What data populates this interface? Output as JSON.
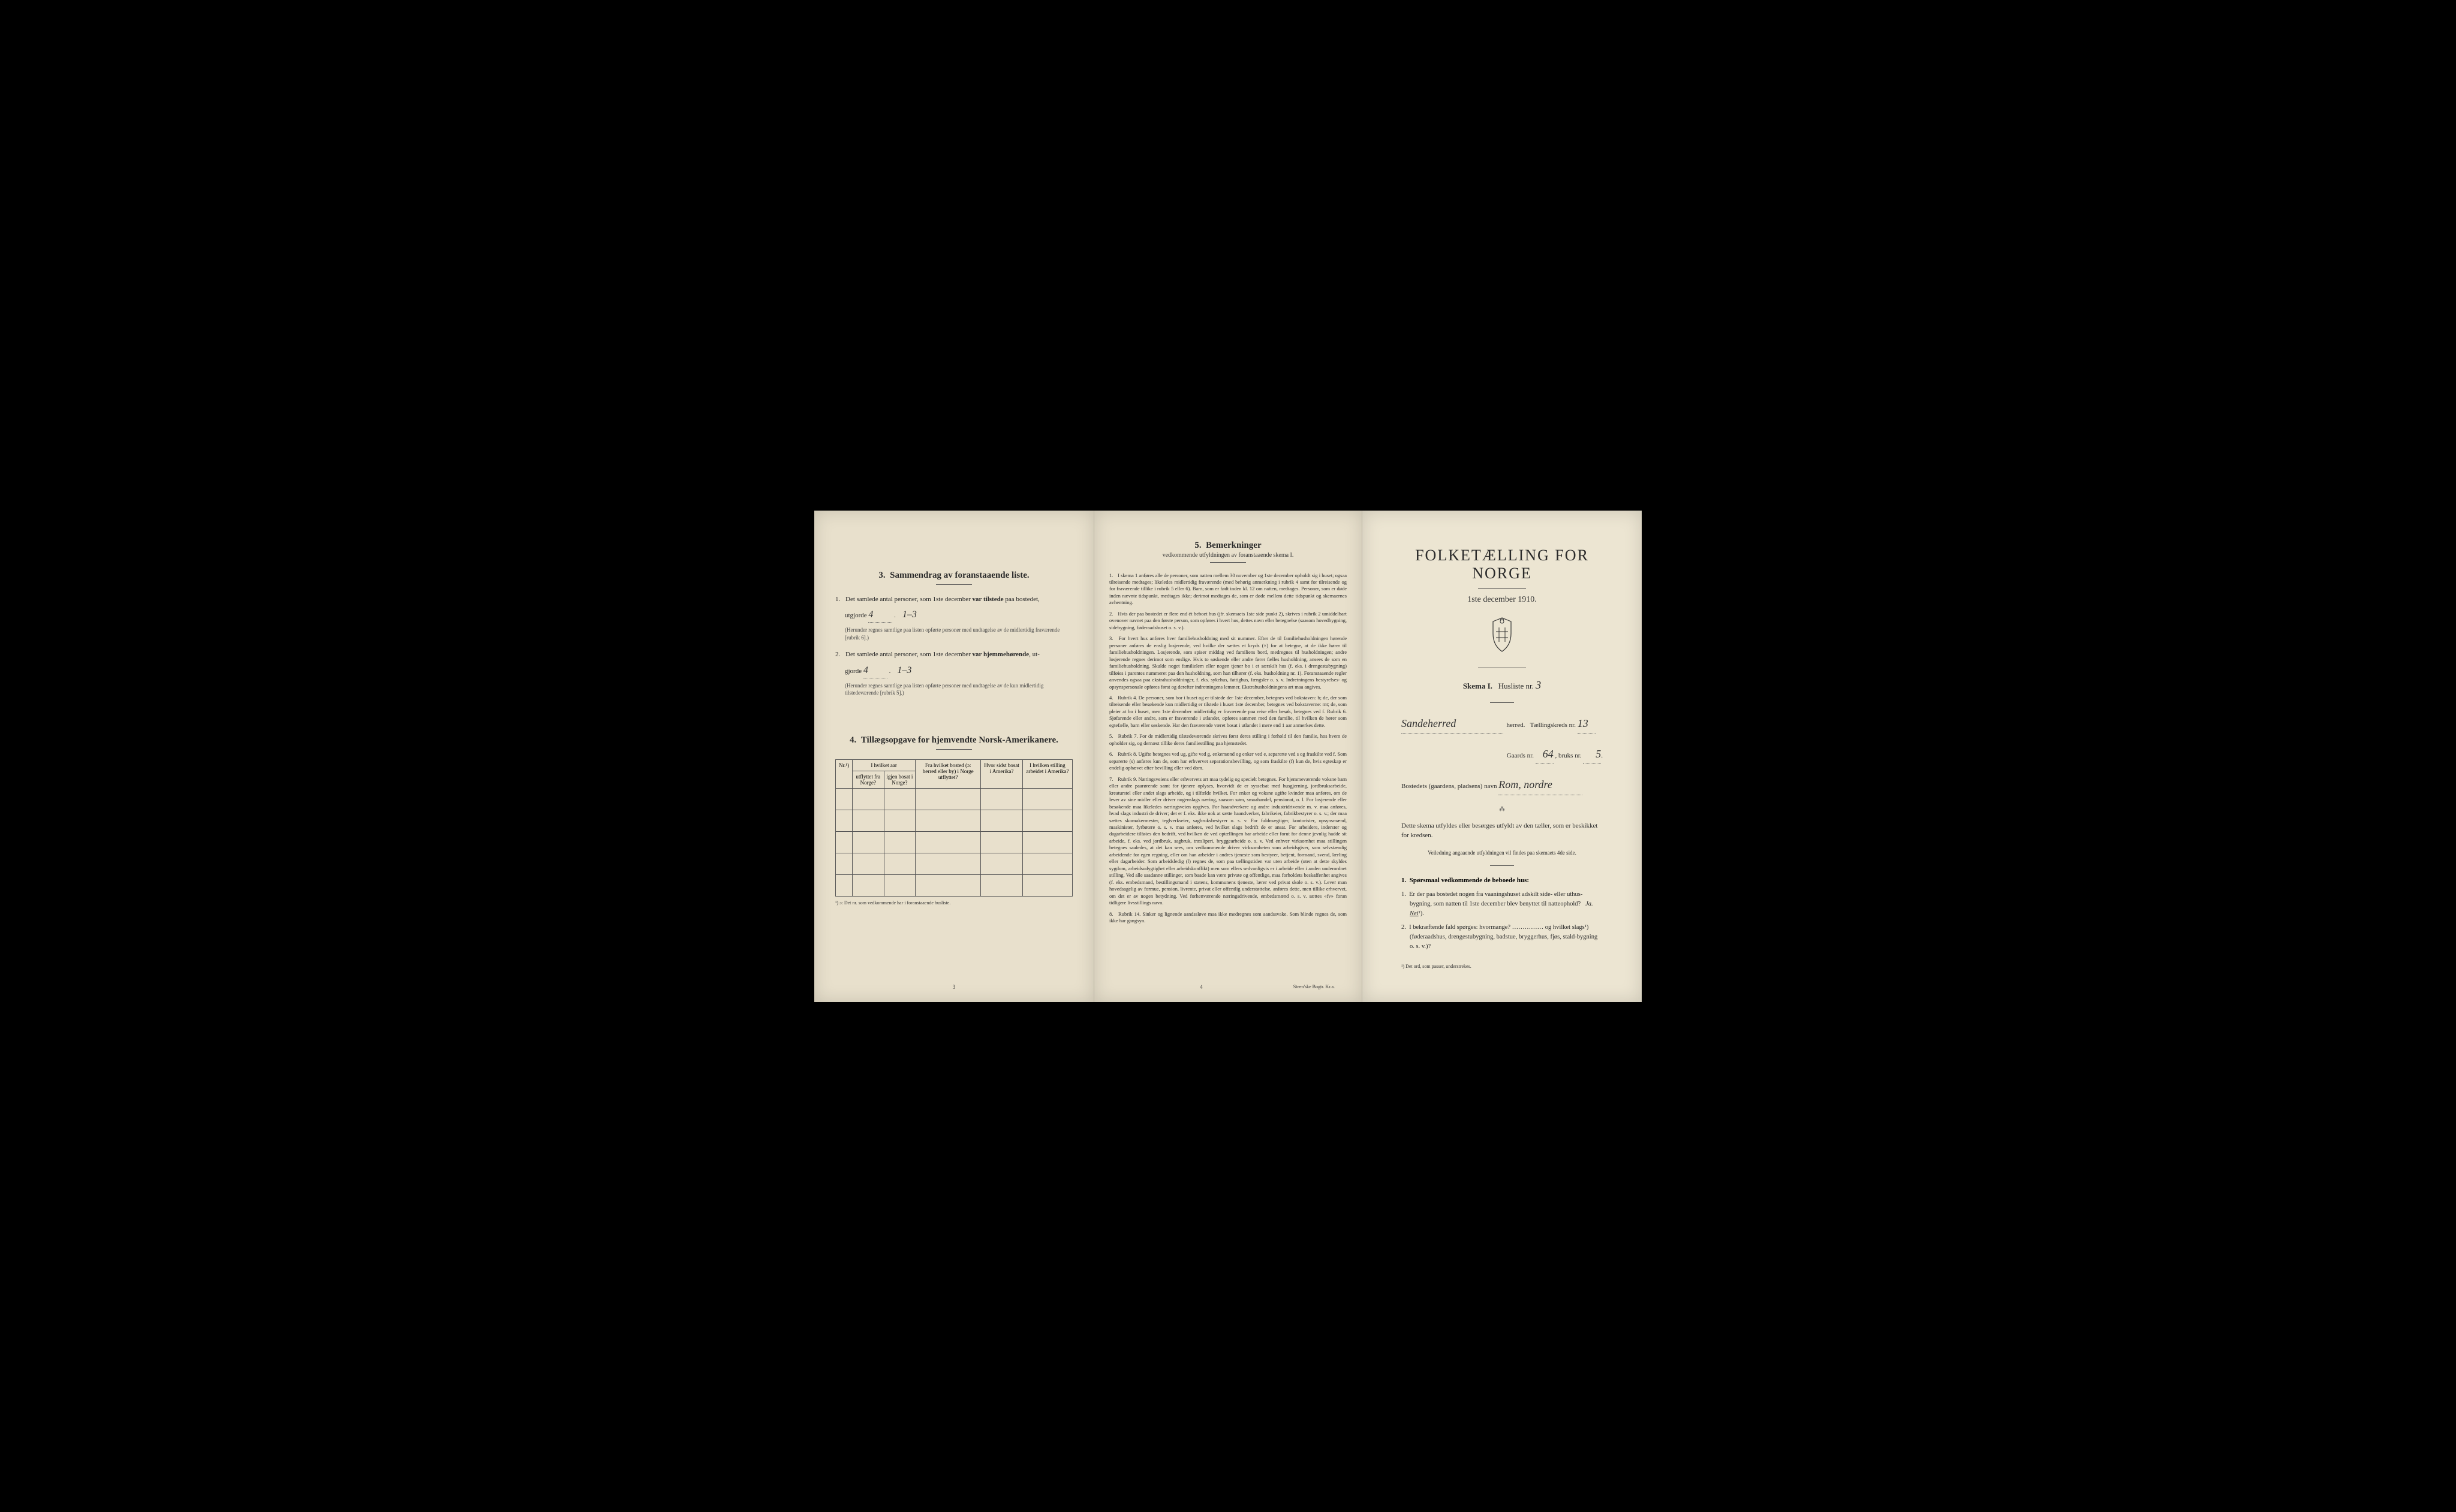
{
  "colors": {
    "background": "#000000",
    "paper": "#e8e0cc",
    "paper_right": "#ece5d2",
    "text": "#2a2a2a",
    "muted": "#444444",
    "border": "#555555"
  },
  "font_sizes": {
    "main_title": 26,
    "section_title": 15,
    "body": 11,
    "small": 9,
    "bemerkninger": 8.5,
    "footnote": 8
  },
  "page_left": {
    "section3": {
      "number": "3.",
      "title": "Sammendrag av foranstaaende liste.",
      "q1": {
        "num": "1.",
        "text_before": "Det samlede antal personer, som 1ste december",
        "emphasis": "var tilstede",
        "text_after": "paa bostedet,",
        "line2_before": "utgjorde",
        "handwritten_count": "4",
        "handwritten_range": "1–3",
        "sub": "(Herunder regnes samtlige paa listen opførte personer med undtagelse av de midlertidig fraværende [rubrik 6].)"
      },
      "q2": {
        "num": "2.",
        "text_before": "Det samlede antal personer, som 1ste december",
        "emphasis": "var hjemmehørende",
        "text_after": ", ut-",
        "line2_before": "gjorde",
        "handwritten_count": "4",
        "handwritten_range": "1–3",
        "sub": "(Herunder regnes samtlige paa listen opførte personer med undtagelse av de kun midlertidig tilstedeværende [rubrik 5].)"
      }
    },
    "section4": {
      "number": "4.",
      "title": "Tillægsopgave for hjemvendte Norsk-Amerikanere.",
      "table": {
        "header_top": {
          "col1": "Nr.¹)",
          "col2_group": "I hvilket aar",
          "col2a": "utflyttet fra Norge?",
          "col2b": "igjen bosat i Norge?",
          "col3": "Fra hvilket bosted (ɔ: herred eller by) i Norge utflyttet?",
          "col4": "Hvor sidst bosat i Amerika?",
          "col5": "I hvilken stilling arbeidet i Amerika?"
        },
        "rows": 5
      },
      "footnote": "¹) ɔ: Det nr. som vedkommende har i foranstaaende husliste."
    },
    "page_number": "3"
  },
  "page_middle": {
    "section5": {
      "number": "5.",
      "title": "Bemerkninger",
      "subtitle": "vedkommende utfyldningen av foranstaaende skema I.",
      "items": [
        {
          "num": "1.",
          "text": "I skema 1 anføres alle de personer, som natten mellem 30 november og 1ste december opholdt sig i huset; ogsaa tilreisende medtages; likeledes midlertidig fraværende (med behørig anmerkning i rubrik 4 samt for tilreisende og for fraværende tillike i rubrik 5 eller 6). Barn, som er født inden kl. 12 om natten, medtages. Personer, som er døde inden nævnte tidspunkt, medtages ikke; derimot medtages de, som er døde mellem dette tidspunkt og skemaernes avhentning."
        },
        {
          "num": "2.",
          "text": "Hvis der paa bostedet er flere end ét beboet hus (jfr. skemaets 1ste side punkt 2), skrives i rubrik 2 umiddelbart ovenover navnet paa den første person, som opføres i hvert hus, dettes navn eller betegnelse (saasom hovedbygning, sidebygning, føderaadshuset o. s. v.)."
        },
        {
          "num": "3.",
          "text": "For hvert hus anføres hver familiehusholdning med sit nummer. Efter de til familiehusholdningen hørende personer anføres de enslig losjerende, ved hvilke der sættes et kryds (×) for at betegne, at de ikke hører til familiehusholdningen. Losjerende, som spiser middag ved familiens bord, medregnes til husholdningen; andre losjerende regnes derimot som enslige. Hvis to søskende eller andre fører fælles husholdning, ansees de som en familiehusholdning. Skulde noget familielem eller nogen tjener bo i et særskilt hus (f. eks. i drengestubygning) tilføies i parentes nummeret paa den husholdning, som han tilhører (f. eks. husholdning nr. 1).\nForanstaaende regler anvendes ogsaa paa ekstrahusholdninger, f. eks. sykehus, fattighus, fængsler o. s. v. Indretningens bestyrelses- og opsynspersonale opføres først og derefter indretningens lemmer. Ekstrahusholdningens art maa angives."
        },
        {
          "num": "4.",
          "text": "Rubrik 4. De personer, som bor i huset og er tilstede der 1ste december, betegnes ved bokstaven: b; de, der som tilreisende eller besøkende kun midlertidig er tilstede i huset 1ste december, betegnes ved bokstaverne: mt; de, som pleier at bo i huset, men 1ste december midlertidig er fraværende paa reise eller besøk, betegnes ved f.\nRubrik 6. Sjøfarende eller andre, som er fraværende i utlandet, opføres sammen med den familie, til hvilken de hører som egtefælle, barn eller søskende.\nHar den fraværende været bosat i utlandet i mere end 1 aar anmerkes dette."
        },
        {
          "num": "5.",
          "text": "Rubrik 7. For de midlertidig tilstedeværende skrives først deres stilling i forhold til den familie, hos hvem de opholder sig, og dernæst tillike deres familiestilling paa hjemstedet."
        },
        {
          "num": "6.",
          "text": "Rubrik 8. Ugifte betegnes ved ug, gifte ved g, enkemænd og enker ved e, separerte ved s og fraskilte ved f. Som separerte (s) anføres kun de, som har erhvervet separationsbevilling, og som fraskilte (f) kun de, hvis egteskap er endelig ophævet efter bevilling eller ved dom."
        },
        {
          "num": "7.",
          "text": "Rubrik 9. Næringsveiens eller erhvervets art maa tydelig og specielt betegnes.\nFor hjemmeværende voksne barn eller andre paarørende samt for tjenere oplyses, hvorvidt de er sysselsat med husgjerning, jordbruksarbeide, kreaturstel eller andet slags arbeide, og i tilfælde hvilket. For enker og voksne ugifte kvinder maa anføres, om de lever av sine midler eller driver nogenslags næring, saasom søm, smaahandel, pensionat, o. l.\nFor losjerende eller besøkende maa likeledes næringsveien opgives.\nFor haandverkere og andre industridrivende m. v. maa anføres, hvad slags industri de driver; det er f. eks. ikke nok at sætte haandverker, fabrikeier, fabrikbestyrer o. s. v.; der maa sættes skomakermester, teglverkseier, sagbruksbestyrer o. s. v.\nFor fuldmægtiger, kontorister, opsynsmænd, maskinister, fyrbøtere o. s. v. maa anføres, ved hvilket slags bedrift de er ansat.\nFor arbeidere, inderster og dagarbeidere tilføies den bedrift, ved hvilken de ved optællingen har arbeide eller forut for denne jevnlig hadde sit arbeide, f. eks. ved jordbruk, sagbruk, træsliperi, bryggearbeide o. s. v.\nVed enhver virksomhet maa stillingen betegnes saaledes, at det kan sees, om vedkommende driver virksomheten som arbeidsgiver, som selvstændig arbeidende for egen regning, eller om han arbeider i andres tjeneste som bestyrer, betjent, formand, svend, lærling eller dagarbeider.\nSom arbeidsledig (l) regnes de, som paa tællingstiden var uten arbeide (uten at dette skyldes sygdom, arbeidsudygtighet eller arbeidskonflikt) men som ellers sedvanligvis er i arbeide eller i anden underordnet stilling.\nVed alle saadanne stillinger, som baade kan være private og offentlige, maa forholdets beskaffenhet angives (f. eks. embedsmand, bestillingsmand i statens, kommunens tjeneste, lærer ved privat skole o. s. v.).\nLever man hovedsagelig av formue, pension, livrente, privat eller offentlig understøttelse, anføres dette, men tillike erhvervet, om det er av nogen betydning.\nVed forhenværende næringsdrivende, embedsmænd o. s. v. sættes «fv» foran tidligere livsstillings navn."
        },
        {
          "num": "8.",
          "text": "Rubrik 14. Sinker og lignende aandssløve maa ikke medregnes som aandssvake.\nSom blinde regnes de, som ikke har gangsyn."
        }
      ]
    },
    "page_number": "4",
    "printer": "Steen'ske Bogtr. Kr.a."
  },
  "page_right": {
    "main_title": "FOLKETÆLLING FOR NORGE",
    "subtitle": "1ste december 1910.",
    "skema_label": "Skema I.",
    "husliste_label": "Husliste nr.",
    "husliste_nr": "3",
    "herred_hw": "Sandeherred",
    "herred_label": "herred.",
    "taellingskreds_label": "Tællingskreds nr.",
    "taellingskreds_nr": "13",
    "gaards_label": "Gaards nr.",
    "gaards_nr": "64",
    "bruks_label": "bruks nr.",
    "bruks_nr": "5",
    "bosted_label": "Bostedets (gaardens, pladsens) navn",
    "bosted_hw": "Rom, nordre",
    "instruction": "Dette skema utfyldes eller besørges utfyldt av den tæller, som er beskikket for kredsen.",
    "instruction_sub": "Veiledning angaaende utfyldningen vil findes paa skemaets 4de side.",
    "sporsmaal": {
      "number": "1.",
      "title": "Spørsmaal vedkommende de beboede hus:",
      "items": [
        {
          "num": "1.",
          "text": "Er der paa bostedet nogen fra vaaningshuset adskilt side- eller uthus-bygning, som natten til 1ste december blev benyttet til natteophold?",
          "answer_ja": "Ja.",
          "answer_nei": "Nei",
          "sup": "¹)."
        },
        {
          "num": "2.",
          "text": "I bekræftende fald spørges: hvormange? …………… og hvilket slags¹) (føderaadshus, drengestubygning, badstue, bryggerhus, fjøs, stald-bygning o. s. v.)?"
        }
      ]
    },
    "footnote": "¹) Det ord, som passer, understrekes."
  }
}
